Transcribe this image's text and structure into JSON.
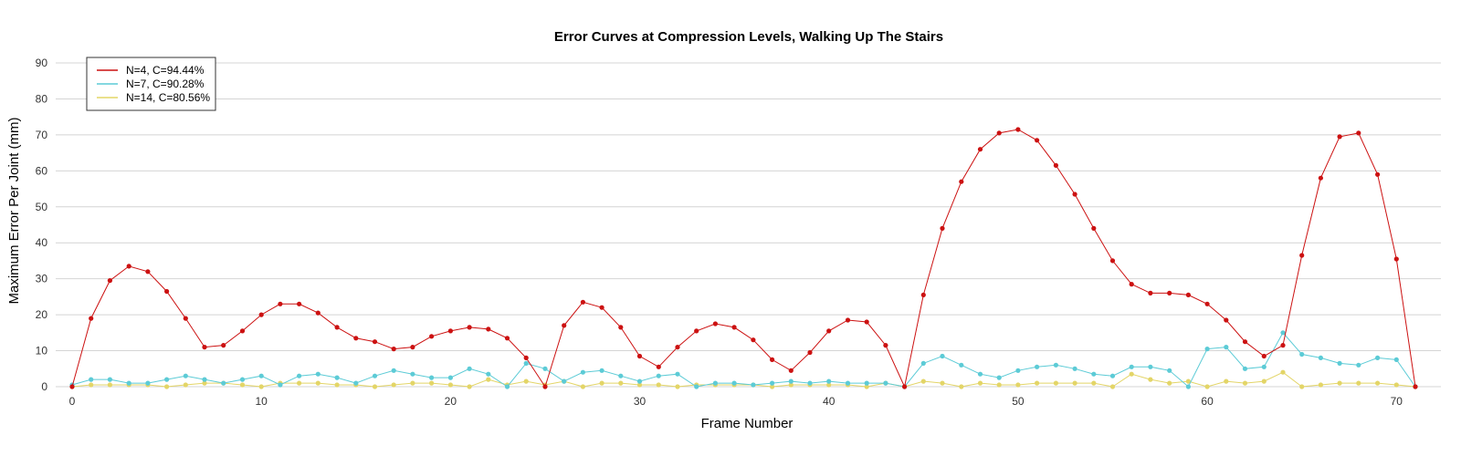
{
  "chart_data": {
    "type": "line",
    "title": "Error Curves at Compression Levels, Walking Up The Stairs",
    "xlabel": "Frame Number",
    "ylabel": "Maximum Error Per Joint (mm)",
    "xlim": [
      0,
      71
    ],
    "ylim": [
      0,
      90
    ],
    "x_ticks": [
      0,
      10,
      20,
      30,
      40,
      50,
      60,
      70
    ],
    "y_ticks": [
      0,
      10,
      20,
      30,
      40,
      50,
      60,
      70,
      80,
      90
    ],
    "grid": "horizontal",
    "legend_position": "top-left",
    "x": [
      0,
      1,
      2,
      3,
      4,
      5,
      6,
      7,
      8,
      9,
      10,
      11,
      12,
      13,
      14,
      15,
      16,
      17,
      18,
      19,
      20,
      21,
      22,
      23,
      24,
      25,
      26,
      27,
      28,
      29,
      30,
      31,
      32,
      33,
      34,
      35,
      36,
      37,
      38,
      39,
      40,
      41,
      42,
      43,
      44,
      45,
      46,
      47,
      48,
      49,
      50,
      51,
      52,
      53,
      54,
      55,
      56,
      57,
      58,
      59,
      60,
      61,
      62,
      63,
      64,
      65,
      66,
      67,
      68,
      69,
      70,
      71
    ],
    "series": [
      {
        "name": "N=4, C=94.44%",
        "color": "#cc1111",
        "values": [
          0,
          19,
          29.5,
          33.5,
          32,
          26.5,
          19,
          11,
          11.5,
          15.5,
          20,
          23,
          23,
          20.5,
          16.5,
          13.5,
          12.5,
          10.5,
          11,
          14,
          15.5,
          16.5,
          16,
          13.5,
          8,
          0,
          17,
          23.5,
          22,
          16.5,
          8.5,
          5.5,
          11,
          15.5,
          17.5,
          16.5,
          13,
          7.5,
          4.5,
          9.5,
          15.5,
          18.5,
          18,
          11.5,
          0,
          25.5,
          44,
          57,
          66,
          70.5,
          71.5,
          68.5,
          61.5,
          53.5,
          44,
          35,
          28.5,
          26,
          26,
          25.5,
          23,
          18.5,
          12.5,
          8.5,
          11.5,
          36.5,
          58,
          69.5,
          70.5,
          59,
          35.5,
          0
        ]
      },
      {
        "name": "N=7, C=90.28%",
        "color": "#5ccbd6",
        "values": [
          0.5,
          2,
          2,
          1,
          1,
          2,
          3,
          2,
          1,
          2,
          3,
          0.5,
          3,
          3.5,
          2.5,
          1,
          3,
          4.5,
          3.5,
          2.5,
          2.5,
          5,
          3.5,
          0,
          6.5,
          5,
          1.5,
          4,
          4.5,
          3,
          1.5,
          3,
          3.5,
          0,
          1,
          1,
          0.5,
          1,
          1.5,
          1,
          1.5,
          1,
          1,
          1,
          0,
          6.5,
          8.5,
          6,
          3.5,
          2.5,
          4.5,
          5.5,
          6,
          5,
          3.5,
          3,
          5.5,
          5.5,
          4.5,
          0,
          10.5,
          11,
          5,
          5.5,
          15,
          9,
          8,
          6.5,
          6,
          8,
          7.5,
          0
        ]
      },
      {
        "name": "N=14, C=80.56%",
        "color": "#e3d567",
        "values": [
          0,
          0.5,
          0.5,
          0.5,
          0.5,
          0,
          0.5,
          1,
          1,
          0.5,
          0,
          1,
          1,
          1,
          0.5,
          0.5,
          0,
          0.5,
          1,
          1,
          0.5,
          0,
          2,
          0.5,
          1.5,
          0.5,
          1.5,
          0,
          1,
          1,
          0.5,
          0.5,
          0,
          0.5,
          0.5,
          0.5,
          0.5,
          0,
          0.5,
          0.5,
          0.5,
          0.5,
          0,
          1,
          0,
          1.5,
          1,
          0,
          1,
          0.5,
          0.5,
          1,
          1,
          1,
          1,
          0,
          3.5,
          2,
          1,
          1.5,
          0,
          1.5,
          1,
          1.5,
          4,
          0,
          0.5,
          1,
          1,
          1,
          0.5,
          0
        ]
      }
    ]
  }
}
